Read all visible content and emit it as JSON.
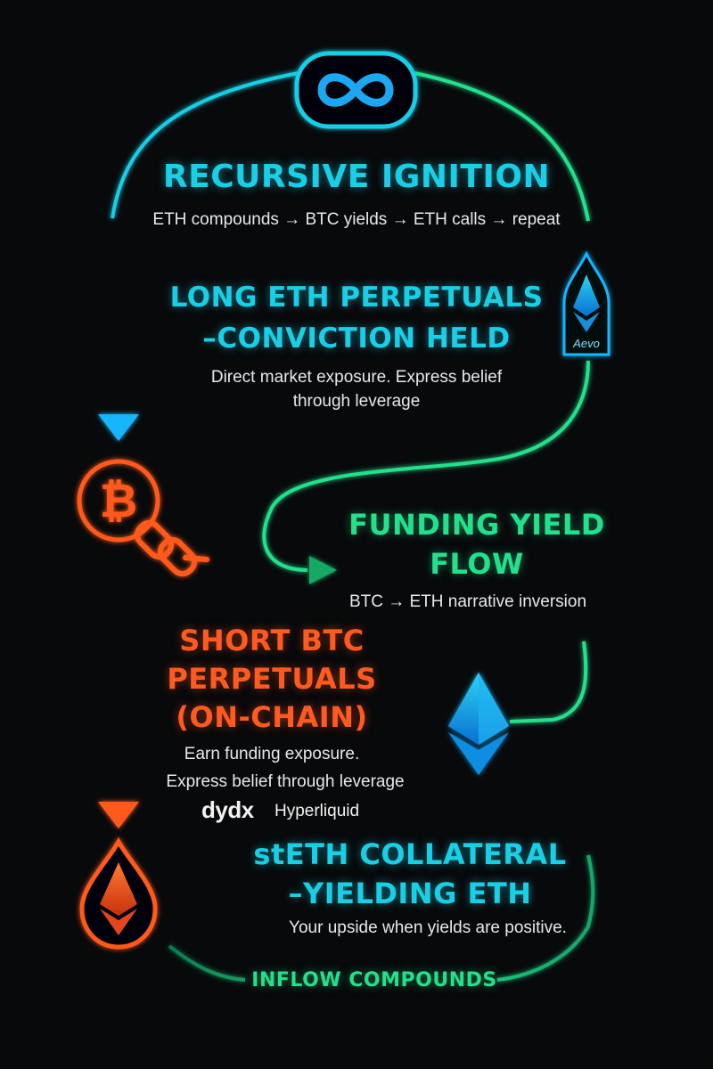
{
  "colors": {
    "blue": "#18cfe6",
    "green": "#22e08c",
    "orange": "#ff5a1f",
    "background": "#08090b"
  },
  "icons": [
    "infinity-icon",
    "bitcoin-icon",
    "chain-link-icon",
    "ethereum-icon",
    "ethereum-drop-icon",
    "aevo-shield-icon",
    "arrow-down-icon",
    "arrow-right-icon"
  ],
  "header": {
    "title": "RECURSIVE IGNITION",
    "subtitle": "ETH compounds → BTC yields → ETH calls → repeat"
  },
  "aevo": {
    "label": "Aevo"
  },
  "long_eth": {
    "title_line1": "LONG ETH PERPETUALS",
    "title_line2": "–CONVICTION HELD",
    "desc_line1": "Direct market exposure. Express belief",
    "desc_line2": "through leverage"
  },
  "funding": {
    "title_line1": "FUNDING YIELD",
    "title_line2": "FLOW",
    "desc": "BTC → ETH narrative inversion"
  },
  "short_btc": {
    "title_line1": "SHORT BTC",
    "title_line2": "PERPETUALS",
    "title_line3": "(ON-CHAIN)",
    "desc_line1": "Earn funding exposure.",
    "desc_line2": "Express belief through leverage",
    "brand1": "dydx",
    "brand2": "Hyperliquid"
  },
  "steth": {
    "title_line1": "stETH COLLATERAL",
    "title_line2": "–YIELDING ETH",
    "desc": "Your upside when yields are positive."
  },
  "footer": {
    "label": "INFLOW COMPOUNDS"
  }
}
